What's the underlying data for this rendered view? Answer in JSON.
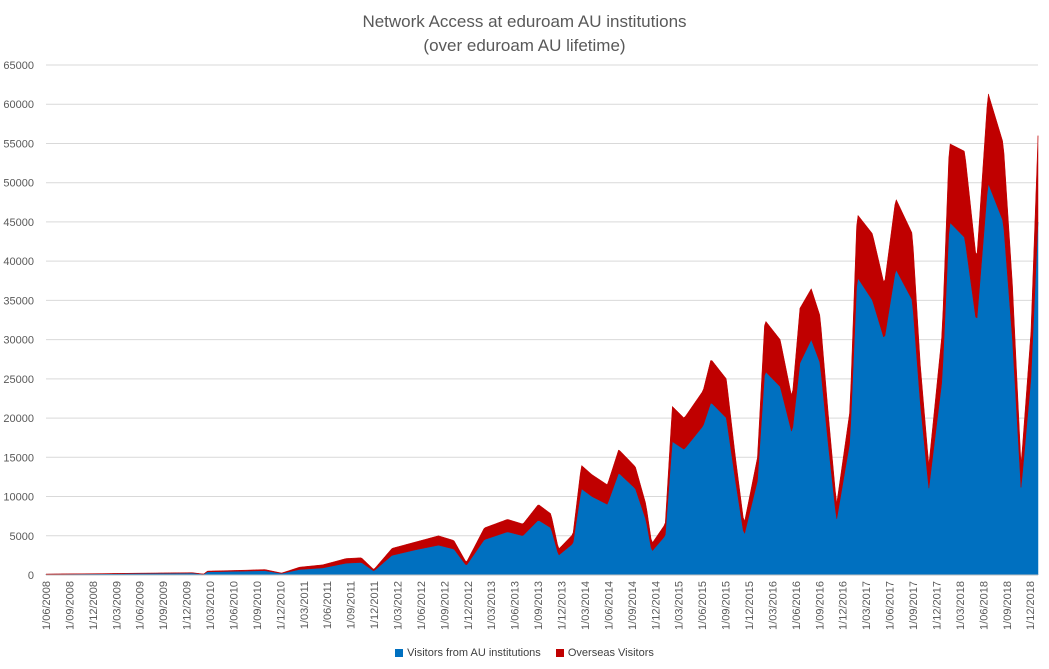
{
  "chart_data": {
    "type": "area",
    "title": "Network Access at eduroam AU institutions",
    "subtitle": "(over eduroam AU lifetime)",
    "xlabel": "",
    "ylabel": "",
    "ylim": [
      0,
      65000
    ],
    "y_ticks": [
      0,
      5000,
      10000,
      15000,
      20000,
      25000,
      30000,
      35000,
      40000,
      45000,
      50000,
      55000,
      60000,
      65000
    ],
    "x_range": [
      "2008-06-01",
      "2019-03-01"
    ],
    "x_tick_labels": [
      "1/06/2008",
      "1/09/2008",
      "1/12/2008",
      "1/03/2009",
      "1/06/2009",
      "1/09/2009",
      "1/12/2009",
      "1/03/2010",
      "1/06/2010",
      "1/09/2010",
      "1/12/2010",
      "1/03/2011",
      "1/06/2011",
      "1/09/2011",
      "1/12/2011",
      "1/03/2012",
      "1/06/2012",
      "1/09/2012",
      "1/12/2012",
      "1/03/2013",
      "1/06/2013",
      "1/09/2013",
      "1/12/2013",
      "1/03/2014",
      "1/06/2014",
      "1/09/2014",
      "1/12/2014",
      "1/03/2015",
      "1/06/2015",
      "1/09/2015",
      "1/12/2015",
      "1/03/2016",
      "1/06/2016",
      "1/09/2016",
      "1/12/2016",
      "1/03/2017",
      "1/06/2017",
      "1/09/2017",
      "1/12/2017",
      "1/03/2018",
      "1/06/2018",
      "1/09/2018",
      "1/12/2018"
    ],
    "stacked": true,
    "grid": true,
    "legend_position": "bottom",
    "series": [
      {
        "name": "Visitors from AU institutions",
        "color": "#0070C0",
        "points": [
          [
            "2008-06-01",
            100
          ],
          [
            "2009-01-01",
            150
          ],
          [
            "2009-06-01",
            200
          ],
          [
            "2010-01-01",
            250
          ],
          [
            "2010-02-15",
            100
          ],
          [
            "2010-03-01",
            400
          ],
          [
            "2010-08-01",
            500
          ],
          [
            "2010-10-15",
            550
          ],
          [
            "2010-12-20",
            200
          ],
          [
            "2011-03-01",
            700
          ],
          [
            "2011-06-01",
            900
          ],
          [
            "2011-09-01",
            1500
          ],
          [
            "2011-11-01",
            1600
          ],
          [
            "2011-12-20",
            500
          ],
          [
            "2012-03-01",
            2500
          ],
          [
            "2012-06-01",
            3200
          ],
          [
            "2012-09-01",
            3800
          ],
          [
            "2012-11-01",
            3300
          ],
          [
            "2012-12-20",
            1200
          ],
          [
            "2013-03-01",
            4500
          ],
          [
            "2013-06-01",
            5500
          ],
          [
            "2013-08-01",
            5000
          ],
          [
            "2013-10-01",
            7000
          ],
          [
            "2013-11-20",
            6000
          ],
          [
            "2013-12-20",
            2500
          ],
          [
            "2014-02-15",
            4000
          ],
          [
            "2014-03-20",
            11000
          ],
          [
            "2014-05-01",
            10000
          ],
          [
            "2014-07-01",
            9000
          ],
          [
            "2014-08-15",
            13000
          ],
          [
            "2014-10-20",
            11000
          ],
          [
            "2014-12-01",
            7000
          ],
          [
            "2014-12-24",
            3000
          ],
          [
            "2015-02-15",
            5000
          ],
          [
            "2015-03-15",
            17000
          ],
          [
            "2015-05-01",
            16000
          ],
          [
            "2015-07-15",
            19000
          ],
          [
            "2015-08-15",
            22000
          ],
          [
            "2015-10-15",
            20000
          ],
          [
            "2015-11-20",
            12000
          ],
          [
            "2015-12-24",
            5000
          ],
          [
            "2016-02-15",
            12000
          ],
          [
            "2016-03-15",
            26000
          ],
          [
            "2016-05-15",
            24000
          ],
          [
            "2016-07-01",
            18000
          ],
          [
            "2016-08-01",
            27000
          ],
          [
            "2016-09-15",
            30000
          ],
          [
            "2016-10-20",
            27000
          ],
          [
            "2016-11-20",
            17000
          ],
          [
            "2016-12-24",
            7000
          ],
          [
            "2017-02-15",
            17000
          ],
          [
            "2017-03-15",
            38000
          ],
          [
            "2017-05-15",
            35000
          ],
          [
            "2017-07-01",
            30000
          ],
          [
            "2017-08-15",
            39000
          ],
          [
            "2017-10-20",
            35000
          ],
          [
            "2017-11-20",
            22000
          ],
          [
            "2017-12-24",
            11000
          ],
          [
            "2018-02-15",
            25000
          ],
          [
            "2018-03-15",
            45000
          ],
          [
            "2018-05-15",
            43000
          ],
          [
            "2018-07-01",
            32000
          ],
          [
            "2018-08-15",
            50000
          ],
          [
            "2018-10-15",
            45000
          ],
          [
            "2018-11-20",
            30000
          ],
          [
            "2018-12-24",
            11000
          ],
          [
            "2019-02-01",
            25000
          ],
          [
            "2019-03-01",
            45000
          ]
        ]
      },
      {
        "name": "Overseas Visitors",
        "color": "#C00000",
        "points": [
          [
            "2008-06-01",
            20
          ],
          [
            "2009-01-01",
            30
          ],
          [
            "2009-06-01",
            40
          ],
          [
            "2010-01-01",
            50
          ],
          [
            "2010-02-15",
            20
          ],
          [
            "2010-03-01",
            100
          ],
          [
            "2010-08-01",
            120
          ],
          [
            "2010-10-15",
            150
          ],
          [
            "2010-12-20",
            50
          ],
          [
            "2011-03-01",
            300
          ],
          [
            "2011-06-01",
            400
          ],
          [
            "2011-09-01",
            600
          ],
          [
            "2011-11-01",
            600
          ],
          [
            "2011-12-20",
            200
          ],
          [
            "2012-03-01",
            900
          ],
          [
            "2012-06-01",
            1000
          ],
          [
            "2012-09-01",
            1200
          ],
          [
            "2012-11-01",
            1100
          ],
          [
            "2012-12-20",
            400
          ],
          [
            "2013-03-01",
            1500
          ],
          [
            "2013-06-01",
            1600
          ],
          [
            "2013-08-01",
            1500
          ],
          [
            "2013-10-01",
            2000
          ],
          [
            "2013-11-20",
            1800
          ],
          [
            "2013-12-20",
            800
          ],
          [
            "2014-02-15",
            1200
          ],
          [
            "2014-03-20",
            3000
          ],
          [
            "2014-05-01",
            2800
          ],
          [
            "2014-07-01",
            2500
          ],
          [
            "2014-08-15",
            3000
          ],
          [
            "2014-10-20",
            2800
          ],
          [
            "2014-12-01",
            2000
          ],
          [
            "2014-12-24",
            1000
          ],
          [
            "2015-02-15",
            1500
          ],
          [
            "2015-03-15",
            4500
          ],
          [
            "2015-05-01",
            4000
          ],
          [
            "2015-07-15",
            4500
          ],
          [
            "2015-08-15",
            5500
          ],
          [
            "2015-10-15",
            5000
          ],
          [
            "2015-11-20",
            3000
          ],
          [
            "2015-12-24",
            1500
          ],
          [
            "2016-02-15",
            3000
          ],
          [
            "2016-03-15",
            6500
          ],
          [
            "2016-05-15",
            6000
          ],
          [
            "2016-07-01",
            4500
          ],
          [
            "2016-08-01",
            7000
          ],
          [
            "2016-09-15",
            6500
          ],
          [
            "2016-10-20",
            6000
          ],
          [
            "2016-11-20",
            4000
          ],
          [
            "2016-12-24",
            2000
          ],
          [
            "2017-02-15",
            4000
          ],
          [
            "2017-03-15",
            8000
          ],
          [
            "2017-05-15",
            8500
          ],
          [
            "2017-07-01",
            7000
          ],
          [
            "2017-08-15",
            9000
          ],
          [
            "2017-10-20",
            8500
          ],
          [
            "2017-11-20",
            5000
          ],
          [
            "2017-12-24",
            3000
          ],
          [
            "2018-02-15",
            6000
          ],
          [
            "2018-03-15",
            10000
          ],
          [
            "2018-05-15",
            11000
          ],
          [
            "2018-07-01",
            8000
          ],
          [
            "2018-08-15",
            11500
          ],
          [
            "2018-10-15",
            10000
          ],
          [
            "2018-11-20",
            7000
          ],
          [
            "2018-12-24",
            3000
          ],
          [
            "2019-02-01",
            6000
          ],
          [
            "2019-03-01",
            11000
          ]
        ]
      }
    ]
  }
}
